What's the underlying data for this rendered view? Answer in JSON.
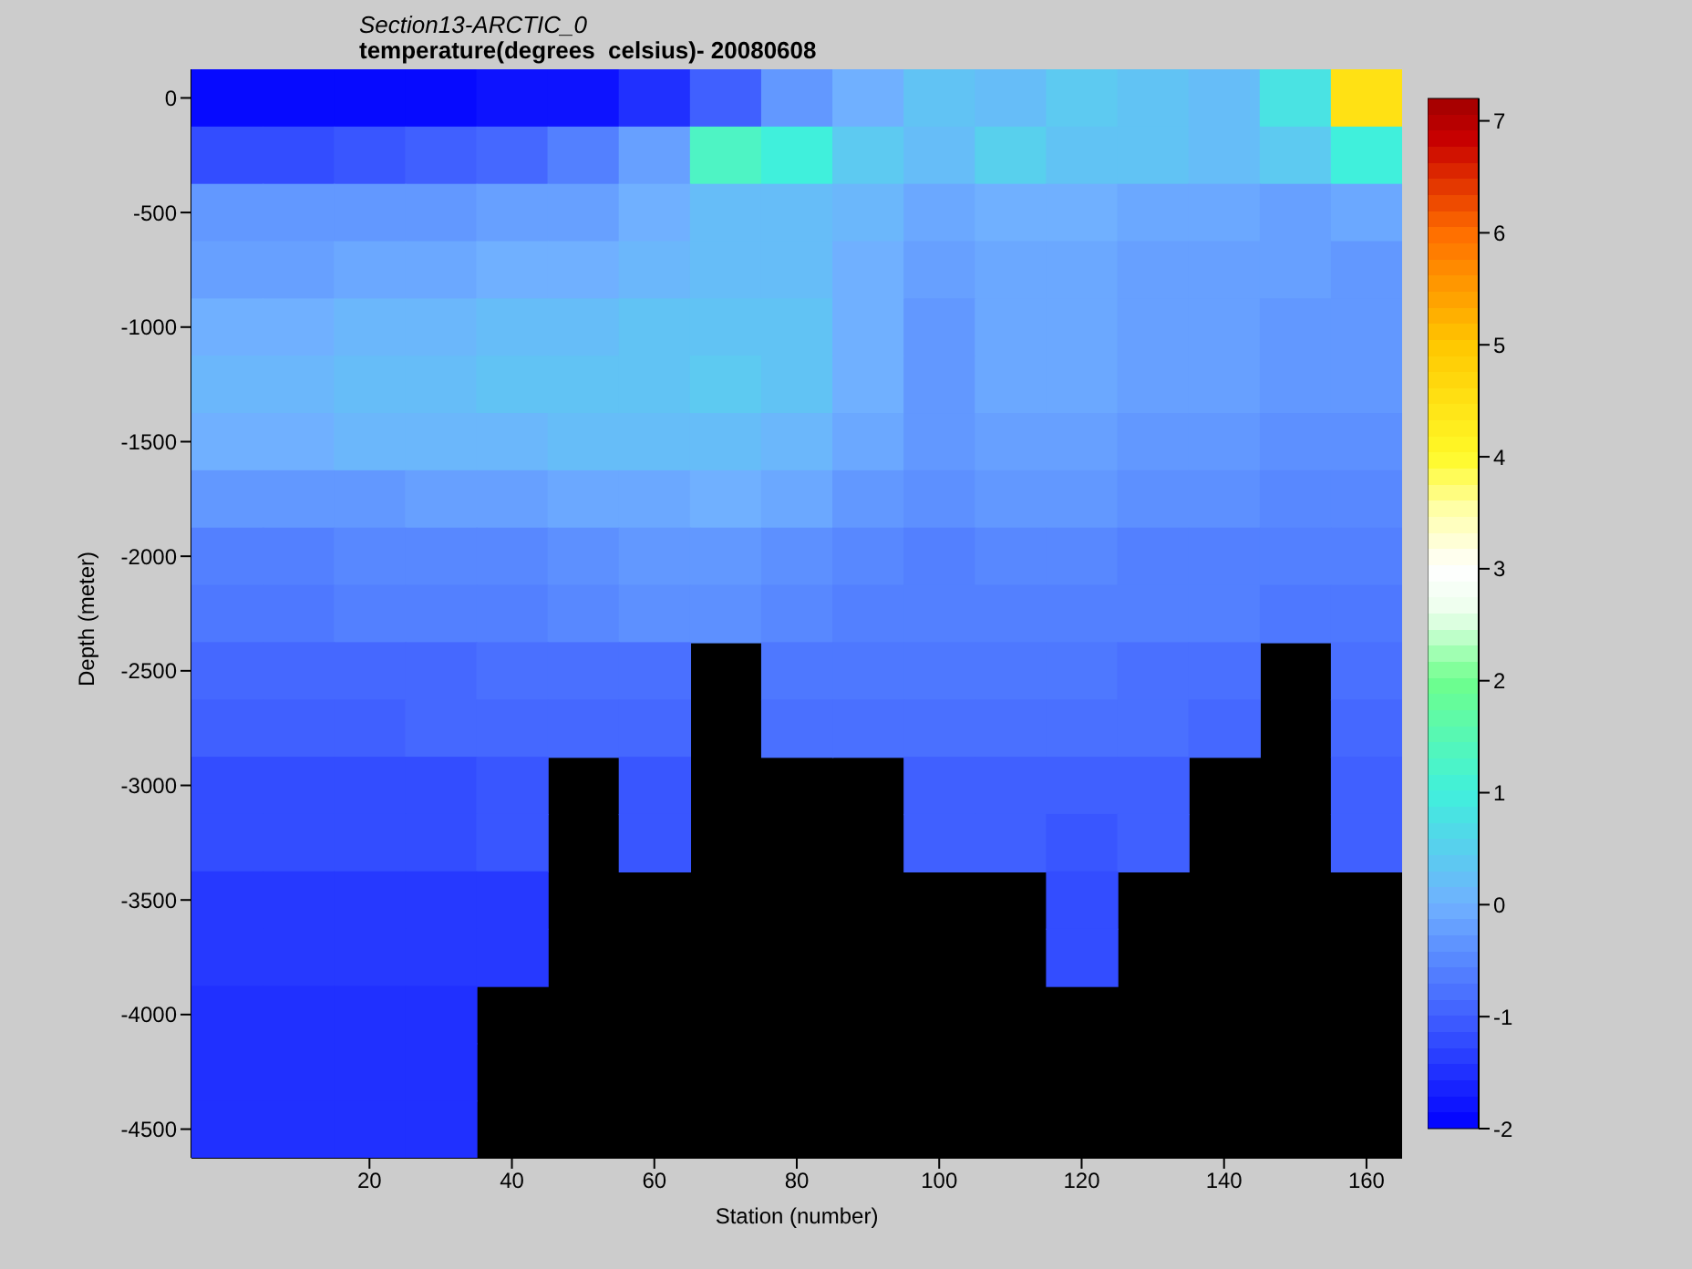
{
  "chart_data": {
    "type": "heatmap",
    "title": "Section13-ARCTIC_0",
    "subtitle": "temperature(degrees  celsius)- 20080608",
    "xlabel": "Station (number)",
    "ylabel": "Depth (meter)",
    "categories": [
      null,
      null,
      "20",
      null,
      "40",
      null,
      "60",
      null,
      "80",
      null,
      "100",
      null,
      "120",
      null,
      "140",
      null,
      "160"
    ],
    "y_categories": [
      "0",
      null,
      "-500",
      null,
      "-1000",
      null,
      "-1500",
      null,
      "-2000",
      null,
      "-2500",
      null,
      "-3000",
      null,
      "-3500",
      null,
      "-4000",
      null,
      "-4500"
    ],
    "clim": [
      -2,
      7.2
    ],
    "cticks": [
      -2,
      -1,
      0,
      1,
      2,
      3,
      4,
      5,
      6,
      7
    ],
    "cells": [
      [
        -1.9,
        -1.9,
        -1.9,
        -1.9,
        -1.8,
        -1.8,
        -1.5,
        -1.0,
        -0.3,
        0,
        0.3,
        0.2,
        0.4,
        0.3,
        0.2,
        0.8,
        4.5
      ],
      [
        -1.2,
        -1.2,
        -1.1,
        -1.0,
        -0.9,
        -0.6,
        -0.2,
        1.3,
        1.0,
        0.4,
        0.2,
        0.5,
        0.3,
        0.3,
        0.2,
        0.4,
        1.0
      ],
      [
        -0.3,
        -0.3,
        -0.3,
        -0.3,
        -0.2,
        -0.2,
        0,
        0.2,
        0.2,
        0.1,
        -0.1,
        0,
        0,
        -0.1,
        -0.1,
        -0.2,
        -0.1
      ],
      [
        -0.2,
        -0.2,
        -0.1,
        -0.1,
        0,
        0,
        0.1,
        0.2,
        0.2,
        0,
        -0.2,
        -0.1,
        -0.1,
        -0.2,
        -0.2,
        -0.2,
        -0.3
      ],
      [
        0,
        0,
        0.1,
        0.1,
        0.2,
        0.2,
        0.3,
        0.3,
        0.3,
        0,
        -0.3,
        -0.1,
        -0.1,
        -0.2,
        -0.2,
        -0.3,
        -0.3
      ],
      [
        0.1,
        0.1,
        0.2,
        0.2,
        0.3,
        0.3,
        0.3,
        0.4,
        0.3,
        0,
        -0.3,
        -0.1,
        -0.1,
        -0.2,
        -0.2,
        -0.3,
        -0.3
      ],
      [
        0,
        0,
        0.1,
        0.1,
        0.1,
        0.2,
        0.2,
        0.2,
        0.1,
        -0.1,
        -0.3,
        -0.2,
        -0.2,
        -0.3,
        -0.3,
        -0.4,
        -0.4
      ],
      [
        -0.3,
        -0.3,
        -0.3,
        -0.2,
        -0.2,
        -0.1,
        -0.1,
        0,
        -0.1,
        -0.3,
        -0.4,
        -0.3,
        -0.3,
        -0.4,
        -0.4,
        -0.5,
        -0.5
      ],
      [
        -0.6,
        -0.6,
        -0.5,
        -0.5,
        -0.5,
        -0.4,
        -0.3,
        -0.3,
        -0.4,
        -0.5,
        -0.6,
        -0.5,
        -0.5,
        -0.6,
        -0.6,
        -0.6,
        -0.6
      ],
      [
        -0.7,
        -0.7,
        -0.6,
        -0.6,
        -0.6,
        -0.5,
        -0.4,
        -0.4,
        -0.5,
        -0.6,
        -0.6,
        -0.6,
        -0.6,
        -0.6,
        -0.6,
        -0.7,
        -0.7
      ],
      [
        -0.9,
        -0.9,
        -0.9,
        -0.9,
        -0.8,
        -0.8,
        -0.8,
        null,
        -0.7,
        -0.7,
        -0.7,
        -0.7,
        -0.7,
        -0.8,
        -0.8,
        null,
        -0.8
      ],
      [
        -1.0,
        -1.0,
        -1.0,
        -0.9,
        -0.9,
        -0.9,
        -0.9,
        null,
        -0.8,
        -0.8,
        -0.8,
        -0.8,
        -0.8,
        -0.8,
        -0.9,
        null,
        -0.9
      ],
      [
        -1.2,
        -1.2,
        -1.2,
        -1.2,
        -1.1,
        null,
        -1.1,
        null,
        null,
        null,
        -1.0,
        -1.0,
        -1.0,
        -1.0,
        null,
        null,
        -1.0
      ],
      [
        -1.2,
        -1.2,
        -1.2,
        -1.2,
        -1.1,
        null,
        -1.1,
        null,
        null,
        null,
        -1.0,
        -1.0,
        -1.1,
        -1.0,
        null,
        null,
        -1.0
      ],
      [
        -1.4,
        -1.4,
        -1.4,
        -1.4,
        -1.4,
        null,
        null,
        null,
        null,
        null,
        null,
        null,
        -1.2,
        null,
        null,
        null,
        null
      ],
      [
        -1.4,
        -1.4,
        -1.4,
        -1.4,
        -1.4,
        null,
        null,
        null,
        null,
        null,
        null,
        null,
        -1.2,
        null,
        null,
        null,
        null
      ],
      [
        -1.5,
        -1.5,
        -1.5,
        -1.5,
        null,
        null,
        null,
        null,
        null,
        null,
        null,
        null,
        null,
        null,
        null,
        null,
        null
      ],
      [
        -1.5,
        -1.5,
        -1.5,
        -1.5,
        null,
        null,
        null,
        null,
        null,
        null,
        null,
        null,
        null,
        null,
        null,
        null,
        null
      ],
      [
        -1.5,
        -1.5,
        -1.5,
        -1.5,
        null,
        null,
        null,
        null,
        null,
        null,
        null,
        null,
        null,
        null,
        null,
        null,
        null
      ]
    ]
  }
}
